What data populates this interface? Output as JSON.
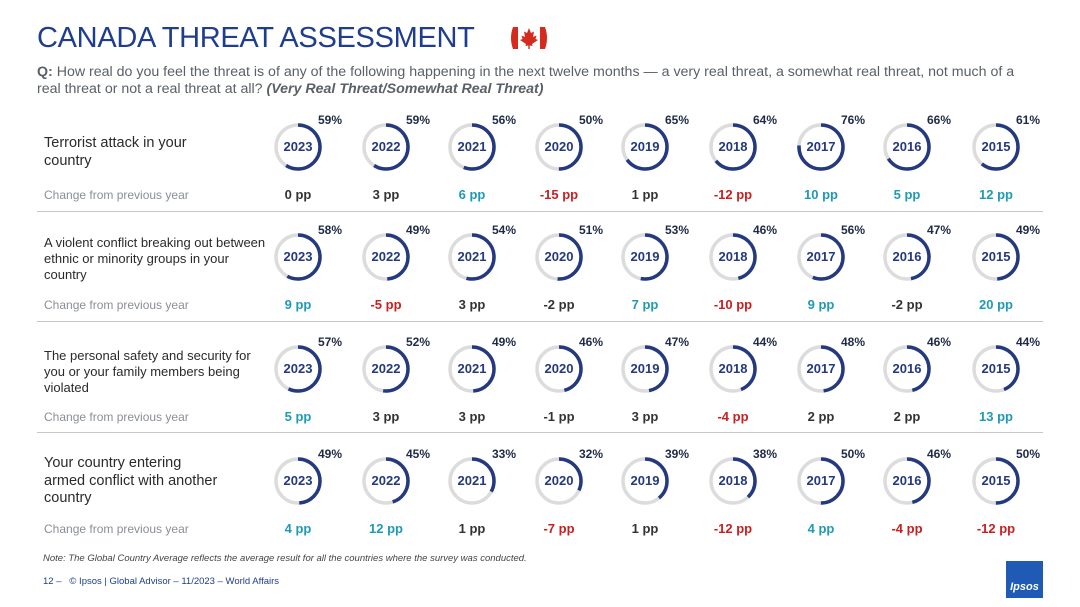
{
  "header": {
    "title": "CANADA THREAT ASSESSMENT",
    "question_prefix": "Q:",
    "question_text": " How real do you feel the threat is of any of the following happening in the next twelve months — a very real threat, a somewhat real threat, not much of a real threat or not a real threat at all? ",
    "question_emphasis": "(Very Real Threat/Somewhat Real Threat)"
  },
  "colors": {
    "ring": "#24397e",
    "ring_track": "#dcdcdc",
    "positive": "#1f9ab5",
    "negative": "#c8201f",
    "neutral": "#333333"
  },
  "change_label": "Change from previous year",
  "chart_data": {
    "type": "donut-grid",
    "years": [
      "2023",
      "2022",
      "2021",
      "2020",
      "2019",
      "2018",
      "2017",
      "2016",
      "2015"
    ],
    "rows": [
      {
        "label": "Terrorist attack in your country",
        "values": [
          59,
          59,
          56,
          50,
          65,
          64,
          76,
          66,
          61
        ],
        "value_labels": [
          "59%",
          "59%",
          "56%",
          "50%",
          "65%",
          "64%",
          "76%",
          "66%",
          "61%"
        ],
        "changes": [
          "0 pp",
          "3 pp",
          "6 pp",
          "-15 pp",
          "1 pp",
          "-12 pp",
          "10 pp",
          "5 pp",
          "12 pp"
        ],
        "change_signs": [
          "neu",
          "neu",
          "pos",
          "neg",
          "neu",
          "neg",
          "pos",
          "pos",
          "pos"
        ]
      },
      {
        "label": "A violent conflict breaking out between ethnic or minority groups in your country",
        "values": [
          58,
          49,
          54,
          51,
          53,
          46,
          56,
          47,
          49
        ],
        "value_labels": [
          "58%",
          "49%",
          "54%",
          "51%",
          "53%",
          "46%",
          "56%",
          "47%",
          "49%"
        ],
        "changes": [
          "9 pp",
          "-5 pp",
          "3 pp",
          "-2 pp",
          "7 pp",
          "-10 pp",
          "9 pp",
          "-2 pp",
          "20 pp"
        ],
        "change_signs": [
          "pos",
          "neg",
          "neu",
          "neu",
          "pos",
          "neg",
          "pos",
          "neu",
          "pos"
        ]
      },
      {
        "label": "The personal safety and security for you or your family members being violated",
        "values": [
          57,
          52,
          49,
          46,
          47,
          44,
          48,
          46,
          44
        ],
        "value_labels": [
          "57%",
          "52%",
          "49%",
          "46%",
          "47%",
          "44%",
          "48%",
          "46%",
          "44%"
        ],
        "changes": [
          "5 pp",
          "3 pp",
          "3 pp",
          "-1 pp",
          "3 pp",
          "-4 pp",
          "2 pp",
          "2 pp",
          "13 pp"
        ],
        "change_signs": [
          "pos",
          "neu",
          "neu",
          "neu",
          "neu",
          "neg",
          "neu",
          "neu",
          "pos"
        ]
      },
      {
        "label": "Your country entering armed conflict with another country",
        "values": [
          49,
          45,
          33,
          32,
          39,
          38,
          50,
          46,
          50
        ],
        "value_labels": [
          "49%",
          "45%",
          "33%",
          "32%",
          "39%",
          "38%",
          "50%",
          "46%",
          "50%"
        ],
        "changes": [
          "4 pp",
          "12 pp",
          "1 pp",
          "-7 pp",
          "1 pp",
          "-12 pp",
          "4 pp",
          "-4 pp",
          "-12 pp"
        ],
        "change_signs": [
          "pos",
          "pos",
          "neu",
          "neg",
          "neu",
          "neg",
          "pos",
          "neg",
          "neg"
        ]
      }
    ]
  },
  "footer": {
    "note": "Note: The Global Country Average reflects the average result for all the countries where the survey was conducted.",
    "page": "12 –",
    "source": "© Ipsos | Global Advisor – 11/2023 – World Affairs",
    "logo": "Ipsos"
  }
}
